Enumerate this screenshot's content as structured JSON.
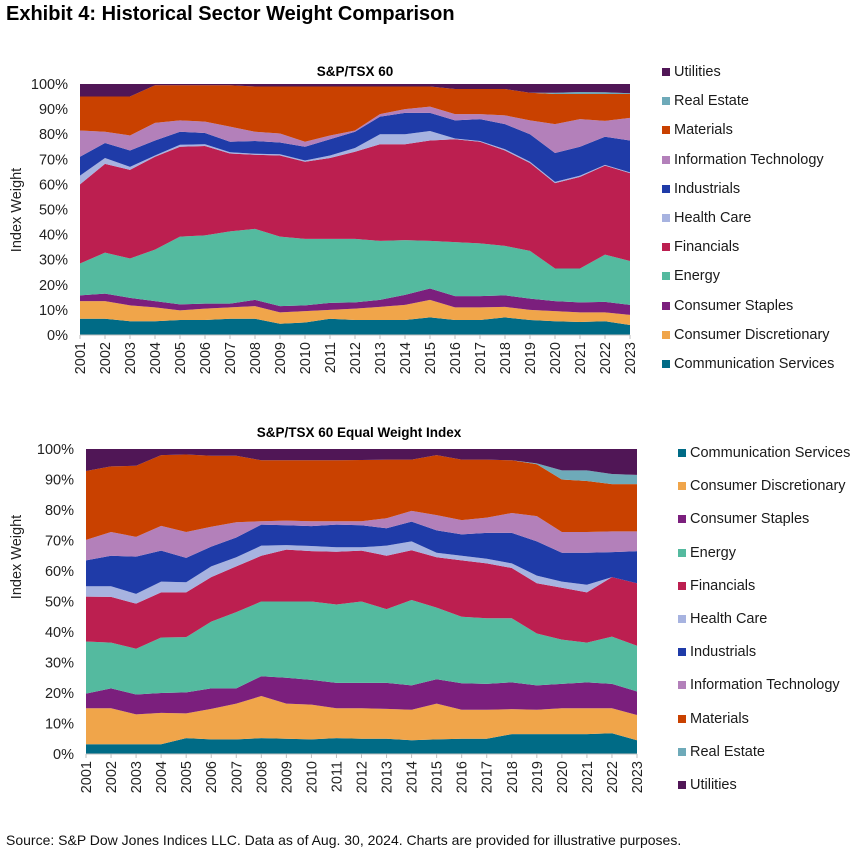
{
  "page": {
    "title": "Exhibit 4: Historical Sector Weight Comparison",
    "footer": "Source: S&P Dow Jones Indices LLC. Data as of Aug. 30, 2024. Charts are provided for illustrative purposes."
  },
  "colors": {
    "Communication Services": "#006B86",
    "Consumer Discretionary": "#F0A54A",
    "Consumer Staples": "#7B1F7D",
    "Energy": "#54BA9F",
    "Financials": "#BC1F50",
    "Health Care": "#A7B3E0",
    "Industrials": "#1F3BA8",
    "Information Technology": "#B380BA",
    "Materials": "#C94100",
    "Real Estate": "#6EAAB9",
    "Utilities": "#501656"
  },
  "chart_data": [
    {
      "type": "area",
      "stacked": true,
      "title": "S&P/TSX 60",
      "xlabel": "",
      "ylabel": "Index Weight",
      "ylim": [
        0,
        100
      ],
      "yticks": [
        "0%",
        "10%",
        "20%",
        "30%",
        "40%",
        "50%",
        "60%",
        "70%",
        "80%",
        "90%",
        "100%"
      ],
      "x": [
        "2001",
        "2002",
        "2003",
        "2004",
        "2005",
        "2006",
        "2007",
        "2008",
        "2009",
        "2010",
        "2011",
        "2012",
        "2013",
        "2014",
        "2015",
        "2016",
        "2017",
        "2018",
        "2019",
        "2020",
        "2021",
        "2022",
        "2023"
      ],
      "legend_position": "right",
      "legend_order": [
        "Utilities",
        "Real Estate",
        "Materials",
        "Information Technology",
        "Industrials",
        "Health Care",
        "Financials",
        "Energy",
        "Consumer Staples",
        "Consumer Discretionary",
        "Communication Services"
      ],
      "series": [
        {
          "name": "Communication Services",
          "values": [
            6.5,
            6.5,
            5.5,
            5.5,
            6.0,
            6.0,
            6.5,
            6.5,
            4.5,
            5.0,
            6.5,
            6.0,
            6.0,
            6.0,
            7.0,
            6.0,
            6.0,
            7.0,
            6.0,
            5.5,
            5.2,
            5.5,
            4.0
          ]
        },
        {
          "name": "Consumer Discretionary",
          "values": [
            7.0,
            7.0,
            6.3,
            5.5,
            3.8,
            4.5,
            4.5,
            5.0,
            4.5,
            4.5,
            3.5,
            4.5,
            5.2,
            6.0,
            7.0,
            5.0,
            5.0,
            4.2,
            4.0,
            4.0,
            3.8,
            3.5,
            4.0
          ]
        },
        {
          "name": "Consumer Staples",
          "values": [
            2.3,
            3.0,
            3.0,
            2.5,
            2.4,
            2.0,
            1.5,
            2.5,
            2.5,
            2.3,
            2.8,
            2.5,
            2.8,
            4.0,
            4.5,
            4.5,
            4.5,
            4.6,
            4.5,
            4.0,
            4.0,
            4.2,
            4.0
          ]
        },
        {
          "name": "Energy",
          "values": [
            12.7,
            16.3,
            15.7,
            20.5,
            27.0,
            27.2,
            28.8,
            28.3,
            27.7,
            26.5,
            25.5,
            25.3,
            23.5,
            21.8,
            19.0,
            21.5,
            21.0,
            19.7,
            19.0,
            13.0,
            13.5,
            18.8,
            17.5
          ]
        },
        {
          "name": "Financials",
          "values": [
            31.5,
            35.4,
            35.3,
            37.0,
            35.8,
            35.6,
            31.0,
            29.5,
            32.3,
            30.7,
            32.2,
            34.7,
            38.5,
            38.2,
            40.0,
            41.0,
            40.5,
            38.0,
            35.0,
            34.0,
            36.5,
            35.5,
            35.0
          ]
        },
        {
          "name": "Health Care",
          "values": [
            3.5,
            2.3,
            1.2,
            0.5,
            0.8,
            0.7,
            0.5,
            0.4,
            0.5,
            0.5,
            1.0,
            1.5,
            4.0,
            4.0,
            3.8,
            0.3,
            0.3,
            0.5,
            0.5,
            0.5,
            0.5,
            0.3,
            0.3
          ]
        },
        {
          "name": "Industrials",
          "values": [
            7.5,
            6.0,
            6.5,
            6.0,
            5.2,
            4.5,
            4.2,
            5.1,
            4.7,
            5.5,
            6.5,
            6.5,
            7.0,
            8.5,
            7.2,
            7.2,
            8.7,
            10.0,
            11.0,
            11.5,
            11.5,
            11.2,
            12.7
          ]
        },
        {
          "name": "Information Technology",
          "values": [
            10.5,
            4.5,
            6.0,
            7.0,
            4.5,
            4.5,
            6.0,
            3.7,
            3.6,
            2.0,
            1.5,
            0.5,
            1.0,
            1.5,
            2.5,
            2.5,
            2.0,
            3.5,
            5.5,
            11.5,
            11.0,
            6.3,
            9.0
          ]
        },
        {
          "name": "Materials",
          "values": [
            13.5,
            14.0,
            15.5,
            15.0,
            14.0,
            14.5,
            16.5,
            18.0,
            18.7,
            22.0,
            19.5,
            17.5,
            11.0,
            9.0,
            8.0,
            10.0,
            10.0,
            10.5,
            11.0,
            12.0,
            10.0,
            10.7,
            9.5
          ]
        },
        {
          "name": "Real Estate",
          "values": [
            0,
            0,
            0,
            0,
            0,
            0,
            0,
            0,
            0,
            0,
            0,
            0,
            0,
            0,
            0,
            0,
            0,
            0,
            0,
            0.5,
            0.8,
            0.7,
            0.3
          ]
        },
        {
          "name": "Utilities",
          "values": [
            5.0,
            5.0,
            5.0,
            0.5,
            0.5,
            0.5,
            0.5,
            1.0,
            1.0,
            1.0,
            1.0,
            1.0,
            1.0,
            1.0,
            1.0,
            2.0,
            2.0,
            2.0,
            3.5,
            3.5,
            3.2,
            3.3,
            3.7
          ]
        }
      ]
    },
    {
      "type": "area",
      "stacked": true,
      "title": "S&P/TSX 60 Equal Weight Index",
      "xlabel": "",
      "ylabel": "Index Weight",
      "ylim": [
        0,
        100
      ],
      "yticks": [
        "0%",
        "10%",
        "20%",
        "30%",
        "40%",
        "50%",
        "60%",
        "70%",
        "80%",
        "90%",
        "100%"
      ],
      "x": [
        "2001",
        "2002",
        "2003",
        "2004",
        "2005",
        "2006",
        "2007",
        "2008",
        "2009",
        "2010",
        "2011",
        "2012",
        "2013",
        "2014",
        "2015",
        "2016",
        "2017",
        "2018",
        "2019",
        "2020",
        "2021",
        "2022",
        "2023"
      ],
      "legend_position": "right",
      "legend_order": [
        "Communication Services",
        "Consumer Discretionary",
        "Consumer Staples",
        "Energy",
        "Financials",
        "Health Care",
        "Industrials",
        "Information Technology",
        "Materials",
        "Real Estate",
        "Utilities"
      ],
      "series": [
        {
          "name": "Communication Services",
          "values": [
            3.2,
            3.2,
            3.2,
            3.2,
            5.2,
            4.8,
            4.8,
            5.2,
            5.0,
            4.8,
            5.2,
            5.0,
            5.0,
            4.5,
            4.8,
            5.0,
            5.0,
            6.5,
            6.5,
            6.5,
            6.5,
            6.8,
            4.5
          ]
        },
        {
          "name": "Consumer Discretionary",
          "values": [
            11.8,
            11.8,
            9.8,
            10.3,
            8.1,
            10.0,
            11.7,
            13.8,
            11.5,
            11.4,
            9.8,
            10.0,
            9.8,
            10.0,
            11.7,
            9.5,
            9.5,
            8.2,
            8.0,
            8.5,
            8.5,
            8.2,
            8.3
          ]
        },
        {
          "name": "Consumer Staples",
          "values": [
            4.8,
            6.5,
            6.5,
            6.5,
            6.9,
            6.7,
            5.0,
            6.5,
            8.5,
            8.1,
            8.3,
            8.3,
            8.5,
            8.0,
            8.0,
            8.7,
            8.5,
            8.8,
            8.0,
            8.0,
            8.5,
            8.0,
            7.7
          ]
        },
        {
          "name": "Energy",
          "values": [
            17.1,
            15.0,
            15.0,
            18.2,
            18.1,
            21.9,
            25.0,
            24.5,
            25.0,
            25.7,
            25.7,
            26.7,
            24.2,
            28.0,
            23.5,
            21.8,
            21.5,
            21.0,
            17.0,
            14.5,
            13.0,
            15.5,
            15.0
          ]
        },
        {
          "name": "Financials",
          "values": [
            14.7,
            15.0,
            14.8,
            14.8,
            14.7,
            14.6,
            15.0,
            15.0,
            17.0,
            16.5,
            17.3,
            16.7,
            17.5,
            16.3,
            16.5,
            18.5,
            18.0,
            16.5,
            16.5,
            17.0,
            16.5,
            19.5,
            20.5
          ]
        },
        {
          "name": "Health Care",
          "values": [
            3.4,
            3.5,
            3.2,
            3.5,
            3.3,
            3.5,
            3.0,
            3.3,
            1.5,
            1.7,
            1.5,
            1.1,
            3.3,
            2.9,
            1.5,
            1.5,
            1.5,
            1.5,
            2.5,
            2.0,
            2.5,
            0.0,
            0.0
          ]
        },
        {
          "name": "Industrials",
          "values": [
            8.5,
            10.0,
            12.2,
            10.2,
            8.0,
            6.5,
            6.5,
            6.9,
            6.5,
            6.5,
            7.4,
            7.2,
            5.7,
            6.5,
            7.3,
            7.0,
            8.5,
            10.0,
            11.2,
            9.5,
            10.5,
            8.2,
            10.5
          ]
        },
        {
          "name": "Information Technology",
          "values": [
            6.7,
            7.8,
            6.5,
            8.1,
            8.5,
            6.5,
            5.0,
            1.1,
            1.5,
            1.6,
            1.1,
            1.3,
            3.3,
            3.5,
            5.0,
            4.7,
            5.0,
            6.5,
            8.3,
            6.8,
            6.8,
            6.8,
            6.5
          ]
        },
        {
          "name": "Materials",
          "values": [
            22.6,
            21.5,
            23.3,
            23.2,
            25.4,
            23.3,
            21.8,
            20.0,
            19.8,
            20.0,
            20.0,
            20.1,
            19.2,
            16.8,
            19.7,
            19.8,
            19.0,
            17.3,
            17.0,
            17.2,
            16.7,
            15.5,
            15.5
          ]
        },
        {
          "name": "Real Estate",
          "values": [
            0,
            0,
            0,
            0,
            0,
            0,
            0,
            0,
            0,
            0,
            0,
            0,
            0,
            0,
            0,
            0,
            0,
            0,
            0.3,
            3.0,
            3.5,
            3.3,
            3.0
          ]
        },
        {
          "name": "Utilities",
          "values": [
            7.2,
            5.7,
            5.5,
            2.0,
            1.8,
            2.2,
            2.2,
            3.7,
            3.7,
            3.7,
            3.7,
            3.6,
            3.5,
            3.5,
            2.0,
            3.5,
            3.5,
            3.7,
            4.7,
            7.0,
            7.0,
            8.2,
            8.5
          ]
        }
      ]
    }
  ]
}
